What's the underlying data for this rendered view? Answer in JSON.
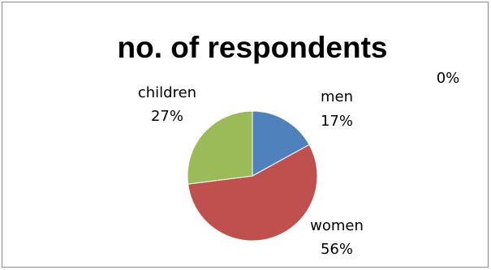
{
  "chart_data": {
    "type": "pie",
    "title": "no. of respondents",
    "slices": [
      {
        "label": "men",
        "value": 17,
        "percent_label": "17%",
        "color": "#4f81bd"
      },
      {
        "label": "women",
        "value": 56,
        "percent_label": "56%",
        "color": "#c0504d"
      },
      {
        "label": "children",
        "value": 27,
        "percent_label": "27%",
        "color": "#9bbb59"
      },
      {
        "label": "",
        "value": 0,
        "percent_label": "0%",
        "color": "#8064a2"
      }
    ],
    "legend": "none"
  }
}
